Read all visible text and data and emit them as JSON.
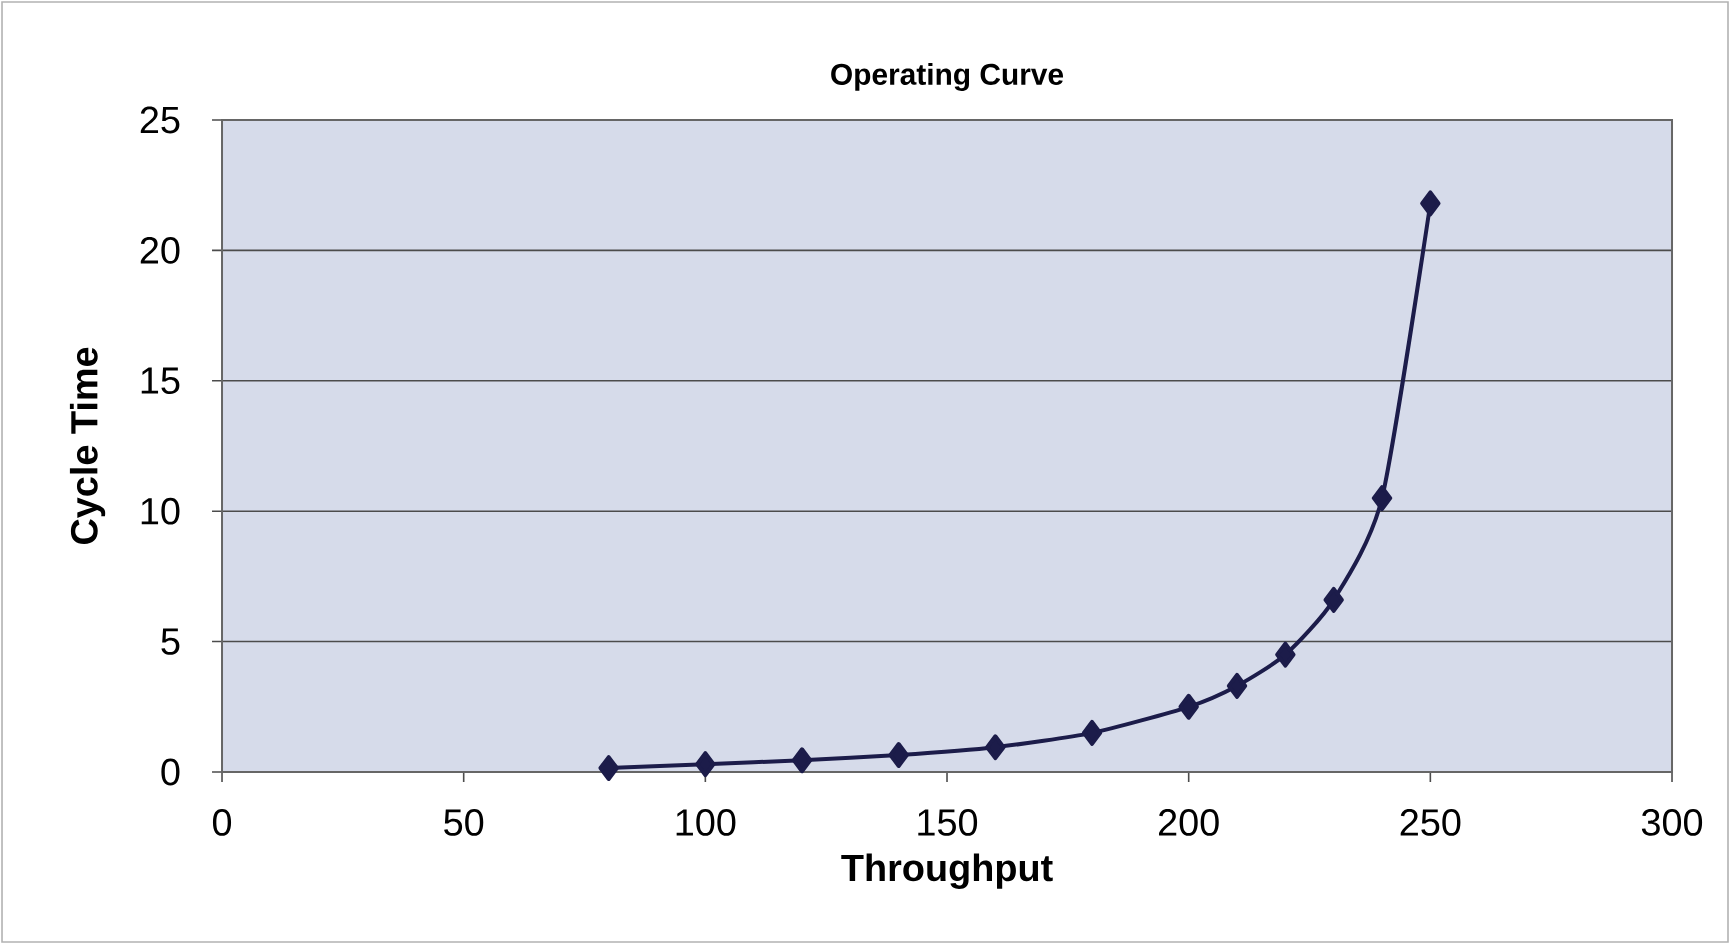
{
  "chart_data": {
    "type": "line",
    "title": "Operating Curve",
    "xlabel": "Throughput",
    "ylabel": "Cycle Time",
    "x": [
      80,
      100,
      120,
      140,
      160,
      180,
      200,
      210,
      220,
      230,
      240,
      250
    ],
    "series": [
      {
        "color": "#1c1c4a",
        "values": [
          0.15,
          0.3,
          0.45,
          0.65,
          0.95,
          1.5,
          2.5,
          3.3,
          4.5,
          6.6,
          10.5,
          21.8
        ]
      }
    ],
    "xlim": [
      0,
      300
    ],
    "ylim": [
      0,
      25
    ],
    "xticks": [
      0,
      50,
      100,
      150,
      200,
      250,
      300
    ],
    "yticks": [
      0,
      5,
      10,
      15,
      20,
      25
    ],
    "grid": "y",
    "marker": "diamond",
    "line_style": "solid"
  }
}
